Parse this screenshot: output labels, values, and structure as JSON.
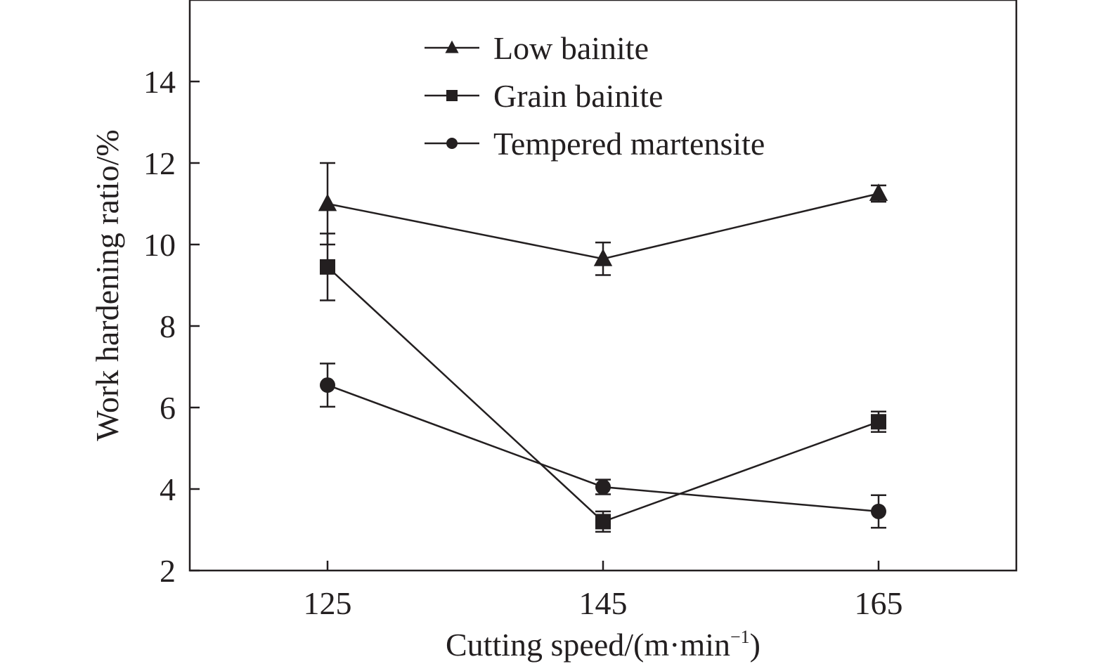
{
  "chart_data": {
    "type": "line",
    "title": "",
    "xlabel": "Cutting speed/(m·min⁻¹)",
    "xlabel_parts": {
      "main": "Cutting speed/(m·min",
      "sup": "−1",
      "close": ")"
    },
    "ylabel": "Work hardening ratio/%",
    "x": [
      125,
      145,
      165
    ],
    "x_tick_labels": [
      "125",
      "145",
      "165"
    ],
    "xlim": [
      115,
      175
    ],
    "ylim": [
      2,
      16
    ],
    "y_ticks": [
      2,
      4,
      6,
      8,
      10,
      12,
      14
    ],
    "y_tick_labels": [
      "2",
      "4",
      "6",
      "8",
      "10",
      "12",
      "14"
    ],
    "grid": false,
    "legend_position": "top-center",
    "series": [
      {
        "name": "Low bainite",
        "marker": "triangle",
        "values": [
          11.0,
          9.65,
          11.25
        ],
        "error": [
          1.0,
          0.4,
          0.2
        ]
      },
      {
        "name": "Grain bainite",
        "marker": "square",
        "values": [
          9.45,
          3.2,
          5.65
        ],
        "error": [
          0.82,
          0.25,
          0.25
        ]
      },
      {
        "name": "Tempered martensite",
        "marker": "circle",
        "values": [
          6.55,
          4.05,
          3.45
        ],
        "error": [
          0.53,
          0.18,
          0.4
        ]
      }
    ],
    "colors": {
      "ink": "#231f20",
      "background": "#ffffff"
    }
  }
}
